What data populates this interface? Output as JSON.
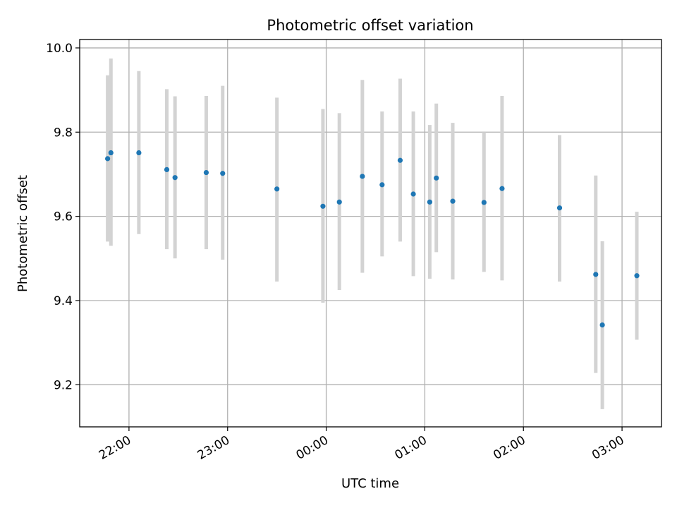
{
  "chart_data": {
    "type": "scatter",
    "title": "Photometric offset variation",
    "xlabel": "UTC time",
    "ylabel": "Photometric offset",
    "x_axis_kind": "time",
    "x_domain": [
      "21:30",
      "03:25"
    ],
    "xlim": [
      21.5,
      27.4
    ],
    "xticks": [
      "22:00",
      "23:00",
      "00:00",
      "01:00",
      "02:00",
      "03:00"
    ],
    "ylim": [
      9.1,
      10.02
    ],
    "yticks": [
      "9.2",
      "9.4",
      "9.6",
      "9.8",
      "10.0"
    ],
    "grid": true,
    "series": [
      {
        "marker_color": "#1f77b4",
        "errorbar_color": "#d3d3d3",
        "points": [
          {
            "x": "21:47",
            "y": 9.737,
            "err_low": 9.54,
            "err_high": 9.935
          },
          {
            "x": "21:49",
            "y": 9.751,
            "err_low": 9.53,
            "err_high": 9.975
          },
          {
            "x": "22:06",
            "y": 9.751,
            "err_low": 9.558,
            "err_high": 9.945
          },
          {
            "x": "22:23",
            "y": 9.711,
            "err_low": 9.522,
            "err_high": 9.902
          },
          {
            "x": "22:28",
            "y": 9.692,
            "err_low": 9.5,
            "err_high": 9.885
          },
          {
            "x": "22:47",
            "y": 9.704,
            "err_low": 9.522,
            "err_high": 9.886
          },
          {
            "x": "22:57",
            "y": 9.702,
            "err_low": 9.497,
            "err_high": 9.91
          },
          {
            "x": "23:30",
            "y": 9.665,
            "err_low": 9.445,
            "err_high": 9.882
          },
          {
            "x": "23:58",
            "y": 9.624,
            "err_low": 9.395,
            "err_high": 9.855
          },
          {
            "x": "00:08",
            "y": 9.634,
            "err_low": 9.425,
            "err_high": 9.845
          },
          {
            "x": "00:22",
            "y": 9.695,
            "err_low": 9.466,
            "err_high": 9.924
          },
          {
            "x": "00:34",
            "y": 9.675,
            "err_low": 9.505,
            "err_high": 9.849
          },
          {
            "x": "00:45",
            "y": 9.733,
            "err_low": 9.54,
            "err_high": 9.927
          },
          {
            "x": "00:53",
            "y": 9.653,
            "err_low": 9.458,
            "err_high": 9.849
          },
          {
            "x": "01:03",
            "y": 9.634,
            "err_low": 9.452,
            "err_high": 9.817
          },
          {
            "x": "01:07",
            "y": 9.691,
            "err_low": 9.515,
            "err_high": 9.868
          },
          {
            "x": "01:17",
            "y": 9.636,
            "err_low": 9.45,
            "err_high": 9.822
          },
          {
            "x": "01:36",
            "y": 9.633,
            "err_low": 9.468,
            "err_high": 9.8
          },
          {
            "x": "01:47",
            "y": 9.666,
            "err_low": 9.448,
            "err_high": 9.886
          },
          {
            "x": "02:22",
            "y": 9.62,
            "err_low": 9.445,
            "err_high": 9.793
          },
          {
            "x": "02:44",
            "y": 9.462,
            "err_low": 9.228,
            "err_high": 9.697
          },
          {
            "x": "02:48",
            "y": 9.342,
            "err_low": 9.142,
            "err_high": 9.541
          },
          {
            "x": "03:09",
            "y": 9.459,
            "err_low": 9.307,
            "err_high": 9.611
          }
        ]
      }
    ]
  }
}
